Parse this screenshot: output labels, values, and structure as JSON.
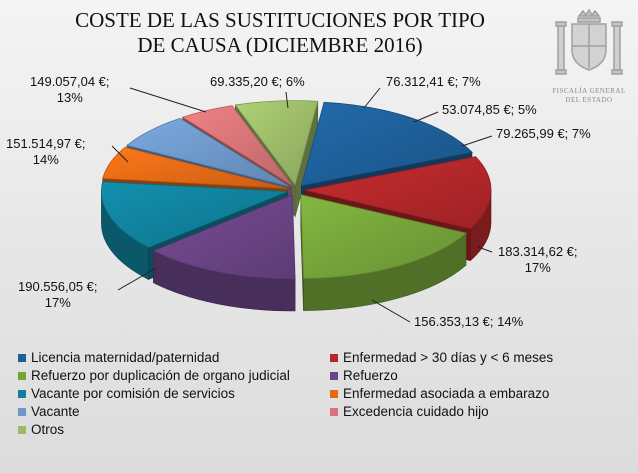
{
  "title_lines": [
    "COSTE DE LAS SUSTITUCIONES POR TIPO",
    "DE CAUSA (DICIEMBRE 2016)"
  ],
  "emblem": {
    "icon": "coat-of-arms-icon",
    "lines": [
      "FISCALÍA GENERAL",
      "DEL ESTADO"
    ]
  },
  "chart_data": {
    "type": "pie",
    "title": "COSTE DE LAS SUSTITUCIONES POR TIPO DE CAUSA (DICIEMBRE 2016)",
    "style": "3d-exploded",
    "legend_position": "bottom",
    "slices": [
      {
        "name": "Licencia maternidad/paternidad",
        "value": 183314.62,
        "percent": 17,
        "label": "183.314,62 €;",
        "percent_label": "17%",
        "color": "#1e5f99"
      },
      {
        "name": "Enfermedad > 30 días y < 6 meses",
        "value": 156353.13,
        "percent": 14,
        "label": "156.353,13 €; 14%",
        "percent_label": "",
        "color": "#b3272a"
      },
      {
        "name": "Refuerzo por duplicación de organo judicial",
        "value": 190556.05,
        "percent": 17,
        "label": "190.556,05 €;",
        "percent_label": "17%",
        "color": "#75a33a"
      },
      {
        "name": "Refuerzo",
        "value": 151514.97,
        "percent": 14,
        "label": "151.514,97 €;",
        "percent_label": "14%",
        "color": "#6a4485"
      },
      {
        "name": "Vacante por comisión de servicios",
        "value": 149057.04,
        "percent": 13,
        "label": "149.057,04 €;",
        "percent_label": "13%",
        "color": "#10819c"
      },
      {
        "name": "Enfermedad asociada a embarazo",
        "value": 69335.2,
        "percent": 6,
        "label": "69.335,20 €; 6%",
        "percent_label": "",
        "color": "#e46b16"
      },
      {
        "name": "Vacante",
        "value": 76312.41,
        "percent": 7,
        "label": "76.312,41 €; 7%",
        "percent_label": "",
        "color": "#6d98c9"
      },
      {
        "name": "Excedencia cuidado hijo",
        "value": 53074.85,
        "percent": 5,
        "label": "53.074,85 €; 5%",
        "percent_label": "",
        "color": "#d77477"
      },
      {
        "name": "Otros",
        "value": 79265.99,
        "percent": 7,
        "label": "79.265,99 €; 7%",
        "percent_label": "",
        "color": "#9cbb68"
      }
    ]
  }
}
